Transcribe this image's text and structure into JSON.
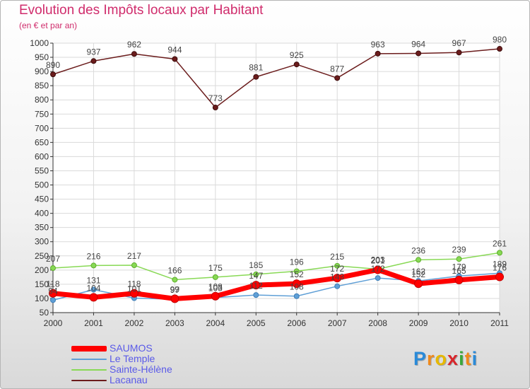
{
  "title": "Evolution des Impôts locaux par Habitant",
  "subtitle": "(en € et par an)",
  "logo": "Proxiti",
  "colors": {
    "title": "#d02c6c",
    "legend_text": "#5a5ae8",
    "grid": "#dadada",
    "axis": "#333333"
  },
  "chart_data": {
    "type": "line",
    "categories": [
      "2000",
      "2001",
      "2002",
      "2003",
      "2004",
      "2005",
      "2006",
      "2007",
      "2008",
      "2009",
      "2010",
      "2011"
    ],
    "ylim": [
      50,
      1000
    ],
    "yticks": [
      50,
      100,
      150,
      200,
      250,
      300,
      350,
      400,
      450,
      500,
      550,
      600,
      650,
      700,
      750,
      800,
      850,
      900,
      950,
      1000
    ],
    "grid": true,
    "legend_position": "bottom-left",
    "series": [
      {
        "name": "SAUMOS",
        "color": "#ff0000",
        "values": [
          118,
          104,
          118,
          99,
          108,
          147,
          152,
          172,
          201,
          152,
          165,
          176
        ]
      },
      {
        "name": "Le Temple",
        "color": "#5f9fd6",
        "values": [
          94,
          131,
          101,
          97,
          103,
          112,
          108,
          143,
          172,
          162,
          179,
          189
        ]
      },
      {
        "name": "Sainte-Hélène",
        "color": "#88d955",
        "values": [
          207,
          216,
          217,
          166,
          175,
          185,
          196,
          215,
          203,
          236,
          239,
          261
        ]
      },
      {
        "name": "Lacanau",
        "color": "#6b1c1c",
        "values": [
          890,
          937,
          962,
          944,
          773,
          881,
          925,
          877,
          963,
          964,
          967,
          980
        ]
      }
    ]
  }
}
